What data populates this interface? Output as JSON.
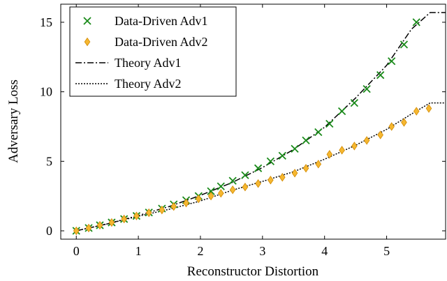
{
  "chart_data": {
    "type": "scatter",
    "title": "",
    "xlabel": "Reconstructor Distortion",
    "ylabel": "Adversary Loss",
    "xlim": [
      -0.25,
      5.95
    ],
    "ylim": [
      -0.6,
      16.3
    ],
    "xticks": [
      0,
      1,
      2,
      3,
      4,
      5
    ],
    "yticks": [
      0,
      5,
      10,
      15
    ],
    "grid": false,
    "legend_position": "top-left",
    "series": [
      {
        "name": "Data-Driven Adv1",
        "kind": "markers",
        "marker": "x",
        "color": "#1a8a1a",
        "points": [
          [
            0.0,
            0.0
          ],
          [
            0.2,
            0.2
          ],
          [
            0.38,
            0.4
          ],
          [
            0.57,
            0.6
          ],
          [
            0.77,
            0.85
          ],
          [
            0.97,
            1.07
          ],
          [
            1.17,
            1.32
          ],
          [
            1.38,
            1.6
          ],
          [
            1.57,
            1.9
          ],
          [
            1.77,
            2.2
          ],
          [
            1.97,
            2.5
          ],
          [
            2.17,
            2.85
          ],
          [
            2.33,
            3.2
          ],
          [
            2.52,
            3.6
          ],
          [
            2.72,
            4.0
          ],
          [
            2.93,
            4.5
          ],
          [
            3.13,
            5.0
          ],
          [
            3.32,
            5.4
          ],
          [
            3.52,
            5.9
          ],
          [
            3.7,
            6.5
          ],
          [
            3.9,
            7.1
          ],
          [
            4.08,
            7.7
          ],
          [
            4.28,
            8.6
          ],
          [
            4.48,
            9.2
          ],
          [
            4.68,
            10.2
          ],
          [
            4.9,
            11.2
          ],
          [
            5.08,
            12.2
          ],
          [
            5.28,
            13.4
          ],
          [
            5.48,
            15.0
          ]
        ]
      },
      {
        "name": "Data-Driven Adv2",
        "kind": "markers",
        "marker": "diamond",
        "color": "#f5b731",
        "points": [
          [
            0.0,
            0.0
          ],
          [
            0.2,
            0.2
          ],
          [
            0.38,
            0.4
          ],
          [
            0.57,
            0.6
          ],
          [
            0.77,
            0.85
          ],
          [
            0.97,
            1.07
          ],
          [
            1.17,
            1.3
          ],
          [
            1.38,
            1.5
          ],
          [
            1.57,
            1.75
          ],
          [
            1.77,
            2.0
          ],
          [
            1.97,
            2.3
          ],
          [
            2.17,
            2.5
          ],
          [
            2.33,
            2.7
          ],
          [
            2.52,
            2.95
          ],
          [
            2.72,
            3.15
          ],
          [
            2.93,
            3.4
          ],
          [
            3.13,
            3.65
          ],
          [
            3.32,
            3.85
          ],
          [
            3.52,
            4.15
          ],
          [
            3.7,
            4.5
          ],
          [
            3.9,
            4.8
          ],
          [
            4.08,
            5.5
          ],
          [
            4.28,
            5.8
          ],
          [
            4.48,
            6.1
          ],
          [
            4.68,
            6.5
          ],
          [
            4.9,
            6.9
          ],
          [
            5.08,
            7.5
          ],
          [
            5.28,
            7.8
          ],
          [
            5.48,
            8.6
          ],
          [
            5.68,
            8.8
          ]
        ]
      },
      {
        "name": "Theory Adv1",
        "kind": "line",
        "dash": "dashdot",
        "color": "#000000",
        "points": [
          [
            0.0,
            0.0
          ],
          [
            0.5,
            0.5
          ],
          [
            1.0,
            1.1
          ],
          [
            1.5,
            1.75
          ],
          [
            2.0,
            2.55
          ],
          [
            2.5,
            3.45
          ],
          [
            3.0,
            4.55
          ],
          [
            3.5,
            5.85
          ],
          [
            4.0,
            7.45
          ],
          [
            4.5,
            9.55
          ],
          [
            5.0,
            11.9
          ],
          [
            5.4,
            14.5
          ],
          [
            5.7,
            15.7
          ],
          [
            5.95,
            15.7
          ]
        ]
      },
      {
        "name": "Theory Adv2",
        "kind": "line",
        "dash": "dotted",
        "color": "#000000",
        "points": [
          [
            0.0,
            0.0
          ],
          [
            0.5,
            0.5
          ],
          [
            1.0,
            1.05
          ],
          [
            1.5,
            1.55
          ],
          [
            2.0,
            2.15
          ],
          [
            2.5,
            2.9
          ],
          [
            3.0,
            3.55
          ],
          [
            3.5,
            4.25
          ],
          [
            4.0,
            5.15
          ],
          [
            4.5,
            6.15
          ],
          [
            5.0,
            7.3
          ],
          [
            5.4,
            8.4
          ],
          [
            5.7,
            9.2
          ],
          [
            5.95,
            9.2
          ]
        ]
      }
    ]
  }
}
